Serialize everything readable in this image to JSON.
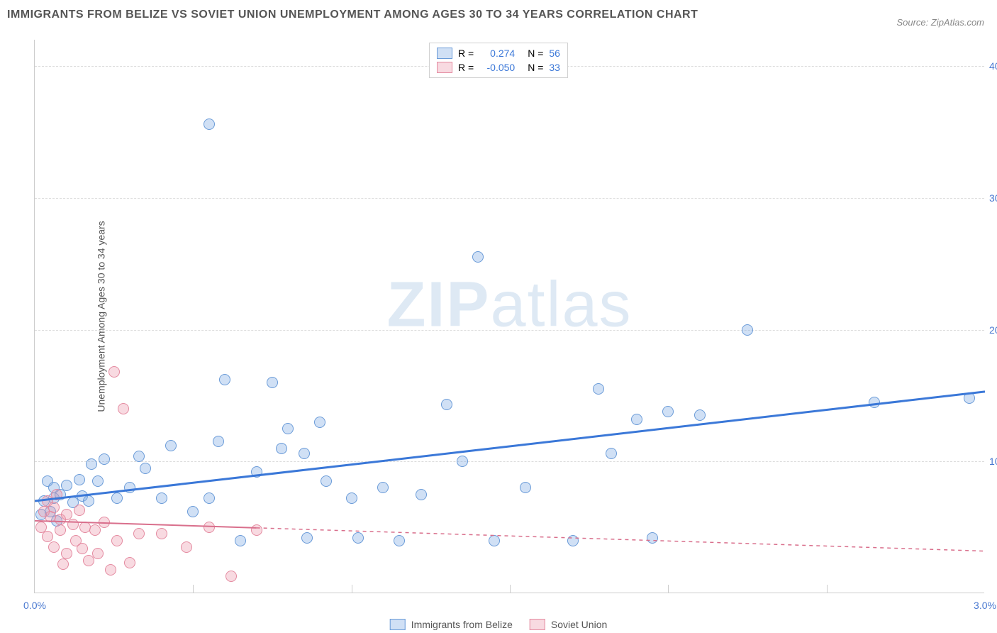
{
  "title": "IMMIGRANTS FROM BELIZE VS SOVIET UNION UNEMPLOYMENT AMONG AGES 30 TO 34 YEARS CORRELATION CHART",
  "source": "Source: ZipAtlas.com",
  "ylabel": "Unemployment Among Ages 30 to 34 years",
  "watermark_a": "ZIP",
  "watermark_b": "atlas",
  "chart": {
    "type": "scatter",
    "xlim": [
      0.0,
      3.0
    ],
    "ylim": [
      0.0,
      42.0
    ],
    "x_ticks": [
      0.0,
      3.0
    ],
    "x_tick_labels": [
      "0.0%",
      "3.0%"
    ],
    "y_ticks": [
      10.0,
      20.0,
      30.0,
      40.0
    ],
    "y_tick_labels": [
      "10.0%",
      "20.0%",
      "30.0%",
      "40.0%"
    ],
    "vgrid": [
      0.5,
      1.0,
      1.5,
      2.0,
      2.5
    ],
    "grid_color": "#e0e0e0",
    "background_color": "#ffffff",
    "point_radius": 8,
    "series": [
      {
        "name": "Immigrants from Belize",
        "r": "0.274",
        "n": "56",
        "color_fill": "rgba(120,165,225,0.35)",
        "color_stroke": "#6a9bd8",
        "trend": {
          "y_at_xmin": 7.0,
          "y_at_xmax": 15.3,
          "color": "#3b78d8",
          "width": 3,
          "dash": null
        },
        "points": [
          [
            0.02,
            6.0
          ],
          [
            0.03,
            7.0
          ],
          [
            0.04,
            8.5
          ],
          [
            0.05,
            6.2
          ],
          [
            0.06,
            7.2
          ],
          [
            0.06,
            8.0
          ],
          [
            0.07,
            5.5
          ],
          [
            0.08,
            7.5
          ],
          [
            0.1,
            8.2
          ],
          [
            0.12,
            6.9
          ],
          [
            0.14,
            8.6
          ],
          [
            0.15,
            7.4
          ],
          [
            0.17,
            7.0
          ],
          [
            0.18,
            9.8
          ],
          [
            0.2,
            8.5
          ],
          [
            0.22,
            10.2
          ],
          [
            0.26,
            7.2
          ],
          [
            0.3,
            8.0
          ],
          [
            0.33,
            10.4
          ],
          [
            0.35,
            9.5
          ],
          [
            0.4,
            7.2
          ],
          [
            0.43,
            11.2
          ],
          [
            0.55,
            35.6
          ],
          [
            0.55,
            7.2
          ],
          [
            0.58,
            11.5
          ],
          [
            0.65,
            4.0
          ],
          [
            0.7,
            9.2
          ],
          [
            0.75,
            16.0
          ],
          [
            0.78,
            11.0
          ],
          [
            0.8,
            12.5
          ],
          [
            0.85,
            10.6
          ],
          [
            0.86,
            4.2
          ],
          [
            0.9,
            13.0
          ],
          [
            0.92,
            8.5
          ],
          [
            1.0,
            7.2
          ],
          [
            1.02,
            4.2
          ],
          [
            1.1,
            8.0
          ],
          [
            1.15,
            4.0
          ],
          [
            1.22,
            7.5
          ],
          [
            1.3,
            14.3
          ],
          [
            1.35,
            10.0
          ],
          [
            1.4,
            25.5
          ],
          [
            1.45,
            4.0
          ],
          [
            1.55,
            8.0
          ],
          [
            1.7,
            4.0
          ],
          [
            1.78,
            15.5
          ],
          [
            1.82,
            10.6
          ],
          [
            1.9,
            13.2
          ],
          [
            1.95,
            4.2
          ],
          [
            2.0,
            13.8
          ],
          [
            2.1,
            13.5
          ],
          [
            2.25,
            20.0
          ],
          [
            2.65,
            14.5
          ],
          [
            2.95,
            14.8
          ],
          [
            0.5,
            6.2
          ],
          [
            0.6,
            16.2
          ]
        ]
      },
      {
        "name": "Soviet Union",
        "r": "-0.050",
        "n": "33",
        "color_fill": "rgba(235,150,170,0.35)",
        "color_stroke": "#e48aa0",
        "trend": {
          "y_at_xmin": 5.5,
          "y_at_xmax": 3.2,
          "color": "#d96f8c",
          "width": 2,
          "dash": "5,5",
          "solid_until_x": 0.7
        },
        "points": [
          [
            0.02,
            5.0
          ],
          [
            0.03,
            6.2
          ],
          [
            0.04,
            7.0
          ],
          [
            0.04,
            4.3
          ],
          [
            0.05,
            5.8
          ],
          [
            0.06,
            6.5
          ],
          [
            0.06,
            3.5
          ],
          [
            0.07,
            7.5
          ],
          [
            0.08,
            4.8
          ],
          [
            0.08,
            5.6
          ],
          [
            0.09,
            2.2
          ],
          [
            0.1,
            6.0
          ],
          [
            0.1,
            3.0
          ],
          [
            0.12,
            5.2
          ],
          [
            0.13,
            4.0
          ],
          [
            0.14,
            6.3
          ],
          [
            0.15,
            3.4
          ],
          [
            0.16,
            5.0
          ],
          [
            0.17,
            2.5
          ],
          [
            0.19,
            4.8
          ],
          [
            0.2,
            3.0
          ],
          [
            0.22,
            5.4
          ],
          [
            0.24,
            1.8
          ],
          [
            0.25,
            16.8
          ],
          [
            0.26,
            4.0
          ],
          [
            0.28,
            14.0
          ],
          [
            0.3,
            2.3
          ],
          [
            0.33,
            4.5
          ],
          [
            0.4,
            4.5
          ],
          [
            0.48,
            3.5
          ],
          [
            0.55,
            5.0
          ],
          [
            0.62,
            1.3
          ],
          [
            0.7,
            4.8
          ]
        ]
      }
    ],
    "legend_bottom": [
      {
        "label": "Immigrants from Belize",
        "fill": "rgba(120,165,225,0.35)",
        "stroke": "#6a9bd8"
      },
      {
        "label": "Soviet Union",
        "fill": "rgba(235,150,170,0.35)",
        "stroke": "#e48aa0"
      }
    ],
    "legend_top": {
      "r_label": "R =",
      "n_label": "N =",
      "value_color": "#3b78d8"
    }
  }
}
